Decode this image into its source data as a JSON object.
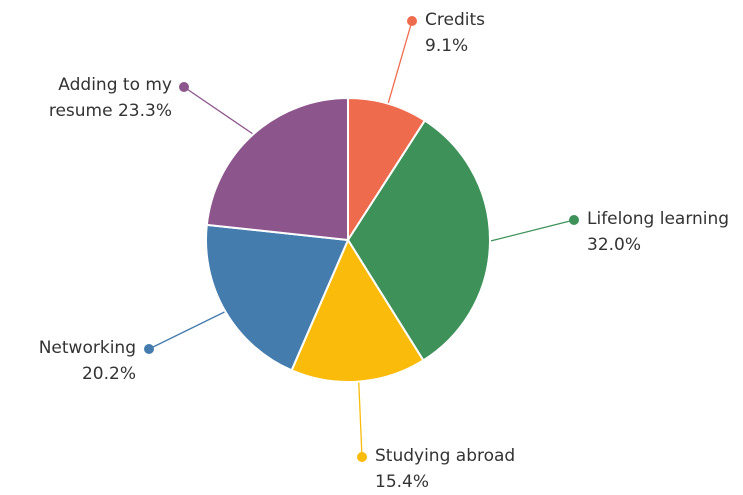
{
  "chart_data": {
    "type": "pie",
    "categories": [
      "Credits",
      "Lifelong learning",
      "Studying abroad",
      "Networking",
      "Adding to my resume"
    ],
    "values": [
      9.1,
      32.0,
      15.4,
      20.2,
      23.3
    ],
    "value_labels": [
      "9.1%",
      "32.0%",
      "15.4%",
      "20.2%",
      "23.3%"
    ],
    "colors": [
      "#ee6c4d",
      "#3d9159",
      "#fbbb0a",
      "#437cad",
      "#8c568c"
    ]
  }
}
